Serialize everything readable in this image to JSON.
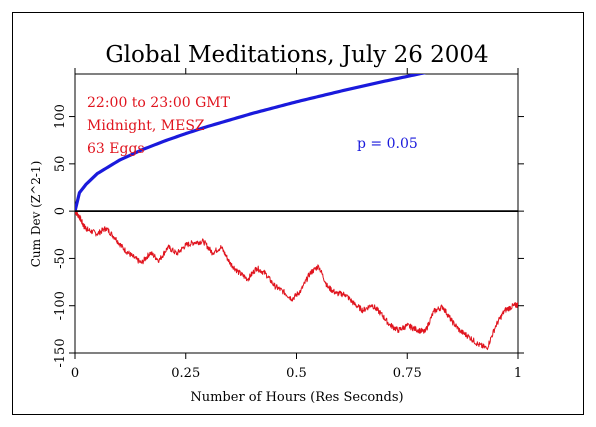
{
  "chart_data": {
    "type": "line",
    "title": "Global Meditations, July 26 2004",
    "xlabel": "Number of Hours (Res Seconds)",
    "ylabel": "Cum Dev (Z^2-1)",
    "xlim": [
      0,
      1
    ],
    "ylim": [
      -150,
      145
    ],
    "x_ticks": [
      0,
      0.25,
      0.5,
      0.75,
      1
    ],
    "x_tick_labels": [
      "0",
      "0.25",
      "0.5",
      "0.75",
      "1"
    ],
    "y_ticks": [
      -150,
      -100,
      -50,
      0,
      50,
      100
    ],
    "y_tick_labels": [
      "-150",
      "-100",
      "-50",
      "0",
      "50",
      "100"
    ],
    "grid": false,
    "annotations": [
      {
        "text": "22:00 to 23:00 GMT",
        "color": "#e0141e"
      },
      {
        "text": "Midnight, MESZ",
        "color": "#e0141e"
      },
      {
        "text": "63 Eggs",
        "color": "#e0141e"
      },
      {
        "text": "p = 0.05",
        "color": "#1a1adc"
      }
    ],
    "series": [
      {
        "color": "#1a1adc",
        "x": [
          0,
          0.01,
          0.025,
          0.05,
          0.1,
          0.15,
          0.2,
          0.25,
          0.3,
          0.4,
          0.5,
          0.6,
          0.7,
          0.8,
          0.9,
          1.0
        ],
        "y": [
          0,
          19.4,
          28.4,
          39.6,
          53.8,
          64.6,
          73.8,
          82.0,
          89.6,
          103.3,
          115.6,
          126.9,
          137.5,
          147.4,
          156.8,
          165.7
        ]
      },
      {
        "color": "#e0141e",
        "x": [
          0,
          0.01,
          0.02,
          0.03,
          0.05,
          0.07,
          0.09,
          0.11,
          0.13,
          0.15,
          0.17,
          0.19,
          0.21,
          0.23,
          0.25,
          0.27,
          0.29,
          0.31,
          0.33,
          0.35,
          0.37,
          0.39,
          0.41,
          0.43,
          0.45,
          0.47,
          0.49,
          0.51,
          0.53,
          0.55,
          0.57,
          0.59,
          0.61,
          0.63,
          0.65,
          0.67,
          0.69,
          0.71,
          0.73,
          0.75,
          0.77,
          0.79,
          0.81,
          0.83,
          0.85,
          0.87,
          0.89,
          0.91,
          0.93,
          0.95,
          0.97,
          0.99,
          1.0
        ],
        "y": [
          0,
          -6,
          -16,
          -20,
          -24,
          -18,
          -28,
          -40,
          -48,
          -55,
          -44,
          -52,
          -38,
          -45,
          -36,
          -33,
          -32,
          -44,
          -38,
          -55,
          -65,
          -72,
          -60,
          -66,
          -79,
          -85,
          -93,
          -84,
          -66,
          -58,
          -80,
          -87,
          -88,
          -98,
          -105,
          -99,
          -108,
          -120,
          -126,
          -121,
          -125,
          -128,
          -106,
          -101,
          -116,
          -127,
          -133,
          -141,
          -145,
          -121,
          -105,
          -100,
          -99
        ]
      },
      {
        "color": "#000000",
        "x": [
          0,
          1
        ],
        "y": [
          0,
          0
        ]
      }
    ]
  }
}
